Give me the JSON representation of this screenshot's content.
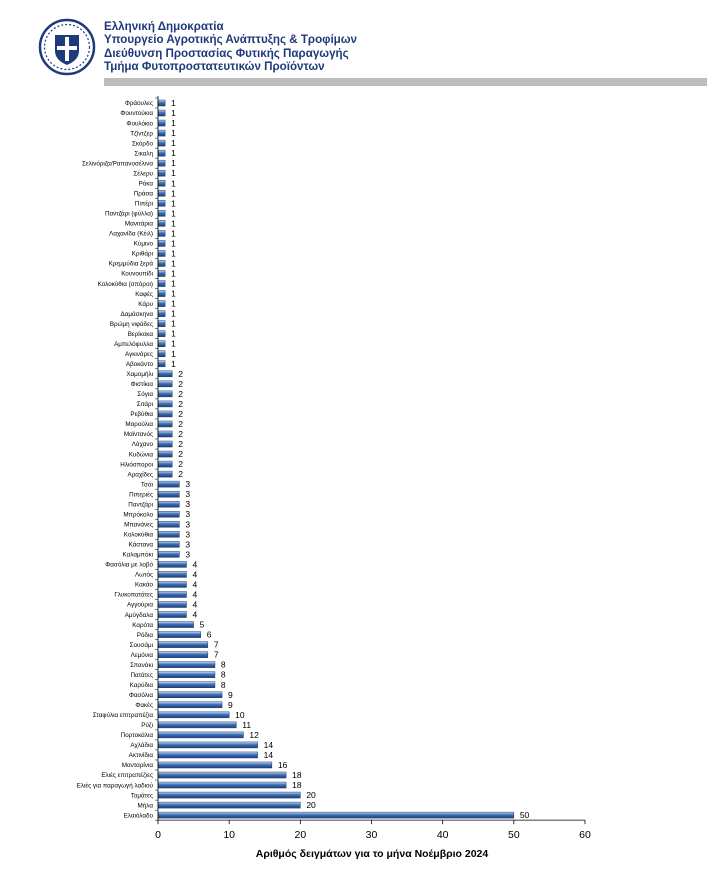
{
  "header": {
    "lines": [
      "Ελληνική Δημοκρατία",
      "Υπουργείο Αγροτικής Ανάπτυξης & Τροφίμων",
      "Διεύθυνση Προστασίας Φυτικής Παραγωγής",
      "Τμήμα Φυτοπροστατευτικών Προϊόντων"
    ]
  },
  "colors": {
    "brand": "#1f3a7a",
    "bar": "#3f6fb4",
    "bar_light": "#c9dcf3",
    "header_bar": "#bdbdbd"
  },
  "chart_data": {
    "type": "bar",
    "orientation": "horizontal",
    "categories": [
      "Φράουλες",
      "Φουντούκια",
      "Φουλόκιο",
      "Τζίντζερ",
      "Σκόρδο",
      "Σικαλη",
      "Σελινόριζα/Ραπανοσέλινα",
      "Σέλερυ",
      "Ρόκα",
      "Πράσα",
      "Πιπέρι",
      "Παντζάρι (φύλλα)",
      "Μανιτάρια",
      "Λαχανίδα (Κέιλ)",
      "Κύμινο",
      "Κριθάρι",
      "Κρεμμύδια ξερά",
      "Κουνουπίδι",
      "Κολοκύθια (σπόροι)",
      "Καφές",
      "Κάρυ",
      "Δαμάσκηνα",
      "Βρώμη νιφάδες",
      "Βερίκοκα",
      "Αμπελόφυλλα",
      "Αγκινάρες",
      "Αβοκάντο",
      "Χαμομήλι",
      "Φιστίκια",
      "Σόγια",
      "Σιτάρι",
      "Ρεβύθια",
      "Μαρούλια",
      "Μαϊντανός",
      "Λάχανο",
      "Κυδώνια",
      "Ηλιόσποροι",
      "Αραχίδες",
      "Τσάι",
      "Πιπεριές",
      "Παντζάρι",
      "Μπρόκολο",
      "Μπανάνες",
      "Κολοκύθια",
      "Κάστανα",
      "Καλαμπόκι",
      "Φασόλια με λοβό",
      "Λωτός",
      "Κακάο",
      "Γλυκοπατάτες",
      "Αγγούρια",
      "Αμύγδαλα",
      "Καρότα",
      "Ρόδια",
      "Σουσάμι",
      "Λεμόνια",
      "Σπανάκι",
      "Πατάτες",
      "Καρύδια",
      "Φασόλια",
      "Φακές",
      "Σταφύλια επιτραπέζια",
      "Ρύζι",
      "Πορτοκάλια",
      "Αχλάδια",
      "Ακτινίδια",
      "Μανταρίνια",
      "Ελιές επιτραπέζιες",
      "Ελιές για παραγωγή λαδιού",
      "Τομάτες",
      "Μήλα",
      "Ελαιόλαδο"
    ],
    "values": [
      1,
      1,
      1,
      1,
      1,
      1,
      1,
      1,
      1,
      1,
      1,
      1,
      1,
      1,
      1,
      1,
      1,
      1,
      1,
      1,
      1,
      1,
      1,
      1,
      1,
      1,
      1,
      2,
      2,
      2,
      2,
      2,
      2,
      2,
      2,
      2,
      2,
      2,
      3,
      3,
      3,
      3,
      3,
      3,
      3,
      3,
      4,
      4,
      4,
      4,
      4,
      4,
      5,
      6,
      7,
      7,
      8,
      8,
      8,
      9,
      9,
      10,
      11,
      12,
      14,
      14,
      16,
      18,
      18,
      20,
      20,
      50
    ],
    "xlabel": "Αριθμός δειγμάτων για το μήνα Νοέμβριο 2024",
    "ylabel": "",
    "xlim": [
      0,
      60
    ],
    "xticks": [
      0,
      10,
      20,
      30,
      40,
      50,
      60
    ],
    "data_labels": true,
    "grid": false,
    "legend": "none"
  }
}
